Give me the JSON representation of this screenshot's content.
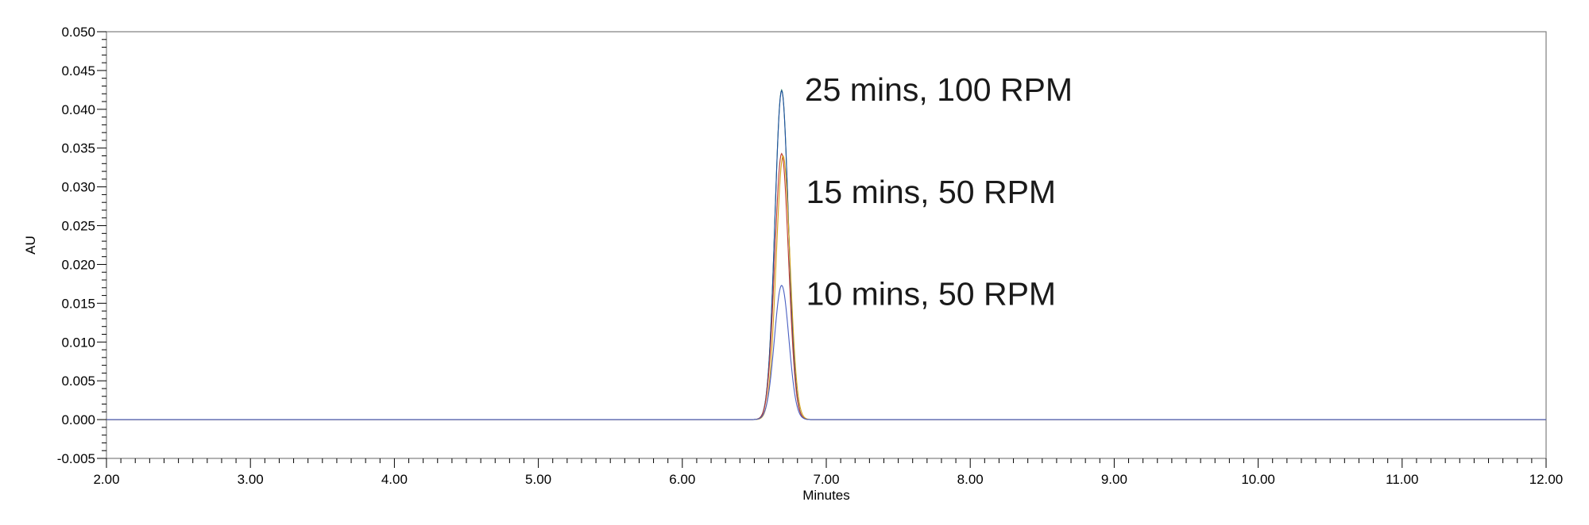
{
  "chart_data": {
    "type": "line",
    "title": "",
    "xlabel": "Minutes",
    "ylabel": "AU",
    "xlim": [
      2.0,
      12.0
    ],
    "ylim": [
      -0.005,
      0.05
    ],
    "x_ticks": [
      "2.00",
      "3.00",
      "4.00",
      "5.00",
      "6.00",
      "7.00",
      "8.00",
      "9.00",
      "10.00",
      "11.00",
      "12.00"
    ],
    "y_ticks": [
      "-0.005",
      "0.000",
      "0.005",
      "0.010",
      "0.015",
      "0.020",
      "0.025",
      "0.030",
      "0.035",
      "0.040",
      "0.045",
      "0.050"
    ],
    "grid": false,
    "legend": "none",
    "series": [
      {
        "color": "#2e8b57",
        "peak_x": 6.69,
        "peak_y": 0.0425,
        "width_sigma": 0.047
      },
      {
        "color": "#1f4fa0",
        "peak_x": 6.69,
        "peak_y": 0.0424,
        "width_sigma": 0.047
      },
      {
        "color": "#c0392b",
        "peak_x": 6.69,
        "peak_y": 0.0343,
        "width_sigma": 0.048
      },
      {
        "color": "#d4a017",
        "peak_x": 6.7,
        "peak_y": 0.034,
        "width_sigma": 0.048
      },
      {
        "color": "#4a5fc1",
        "peak_x": 6.69,
        "peak_y": 0.0173,
        "width_sigma": 0.05
      }
    ],
    "annotations": [
      {
        "text": "25 mins, 100 RPM",
        "x": 6.85,
        "y": 0.0411
      },
      {
        "text": "15 mins, 50 RPM",
        "x": 6.86,
        "y": 0.0279
      },
      {
        "text": "10 mins, 50 RPM",
        "x": 6.86,
        "y": 0.0148
      }
    ]
  }
}
